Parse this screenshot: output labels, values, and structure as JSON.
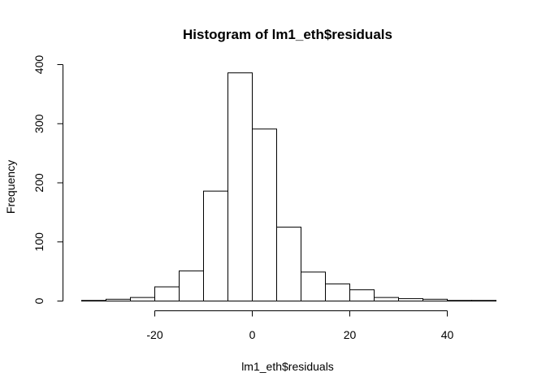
{
  "chart_data": {
    "type": "bar",
    "title": "Histogram of lm1_eth$residuals",
    "xlabel": "lm1_eth$residuals",
    "ylabel": "Frequency",
    "bin_width": 5,
    "bins": [
      {
        "from": -35,
        "to": -30,
        "count": 1
      },
      {
        "from": -30,
        "to": -25,
        "count": 3
      },
      {
        "from": -25,
        "to": -20,
        "count": 6
      },
      {
        "from": -20,
        "to": -15,
        "count": 24
      },
      {
        "from": -15,
        "to": -10,
        "count": 51
      },
      {
        "from": -10,
        "to": -5,
        "count": 186
      },
      {
        "from": -5,
        "to": 0,
        "count": 386
      },
      {
        "from": 0,
        "to": 5,
        "count": 291
      },
      {
        "from": 5,
        "to": 10,
        "count": 125
      },
      {
        "from": 10,
        "to": 15,
        "count": 49
      },
      {
        "from": 15,
        "to": 20,
        "count": 29
      },
      {
        "from": 20,
        "to": 25,
        "count": 19
      },
      {
        "from": 25,
        "to": 30,
        "count": 6
      },
      {
        "from": 30,
        "to": 35,
        "count": 4
      },
      {
        "from": 35,
        "to": 40,
        "count": 3
      },
      {
        "from": 40,
        "to": 45,
        "count": 1
      },
      {
        "from": 45,
        "to": 50,
        "count": 1
      }
    ],
    "xlim": [
      -35,
      50
    ],
    "ylim": [
      0,
      400
    ],
    "x_ticks": [
      -20,
      0,
      20,
      40
    ],
    "x_tick_labels": [
      "-20",
      "0",
      "20",
      "40"
    ],
    "y_ticks": [
      0,
      100,
      200,
      300,
      400
    ],
    "y_tick_labels": [
      "0",
      "100",
      "200",
      "300",
      "400"
    ],
    "grid": false,
    "legend": "none",
    "bar_fill": "#ffffff",
    "bar_stroke": "#000000"
  }
}
